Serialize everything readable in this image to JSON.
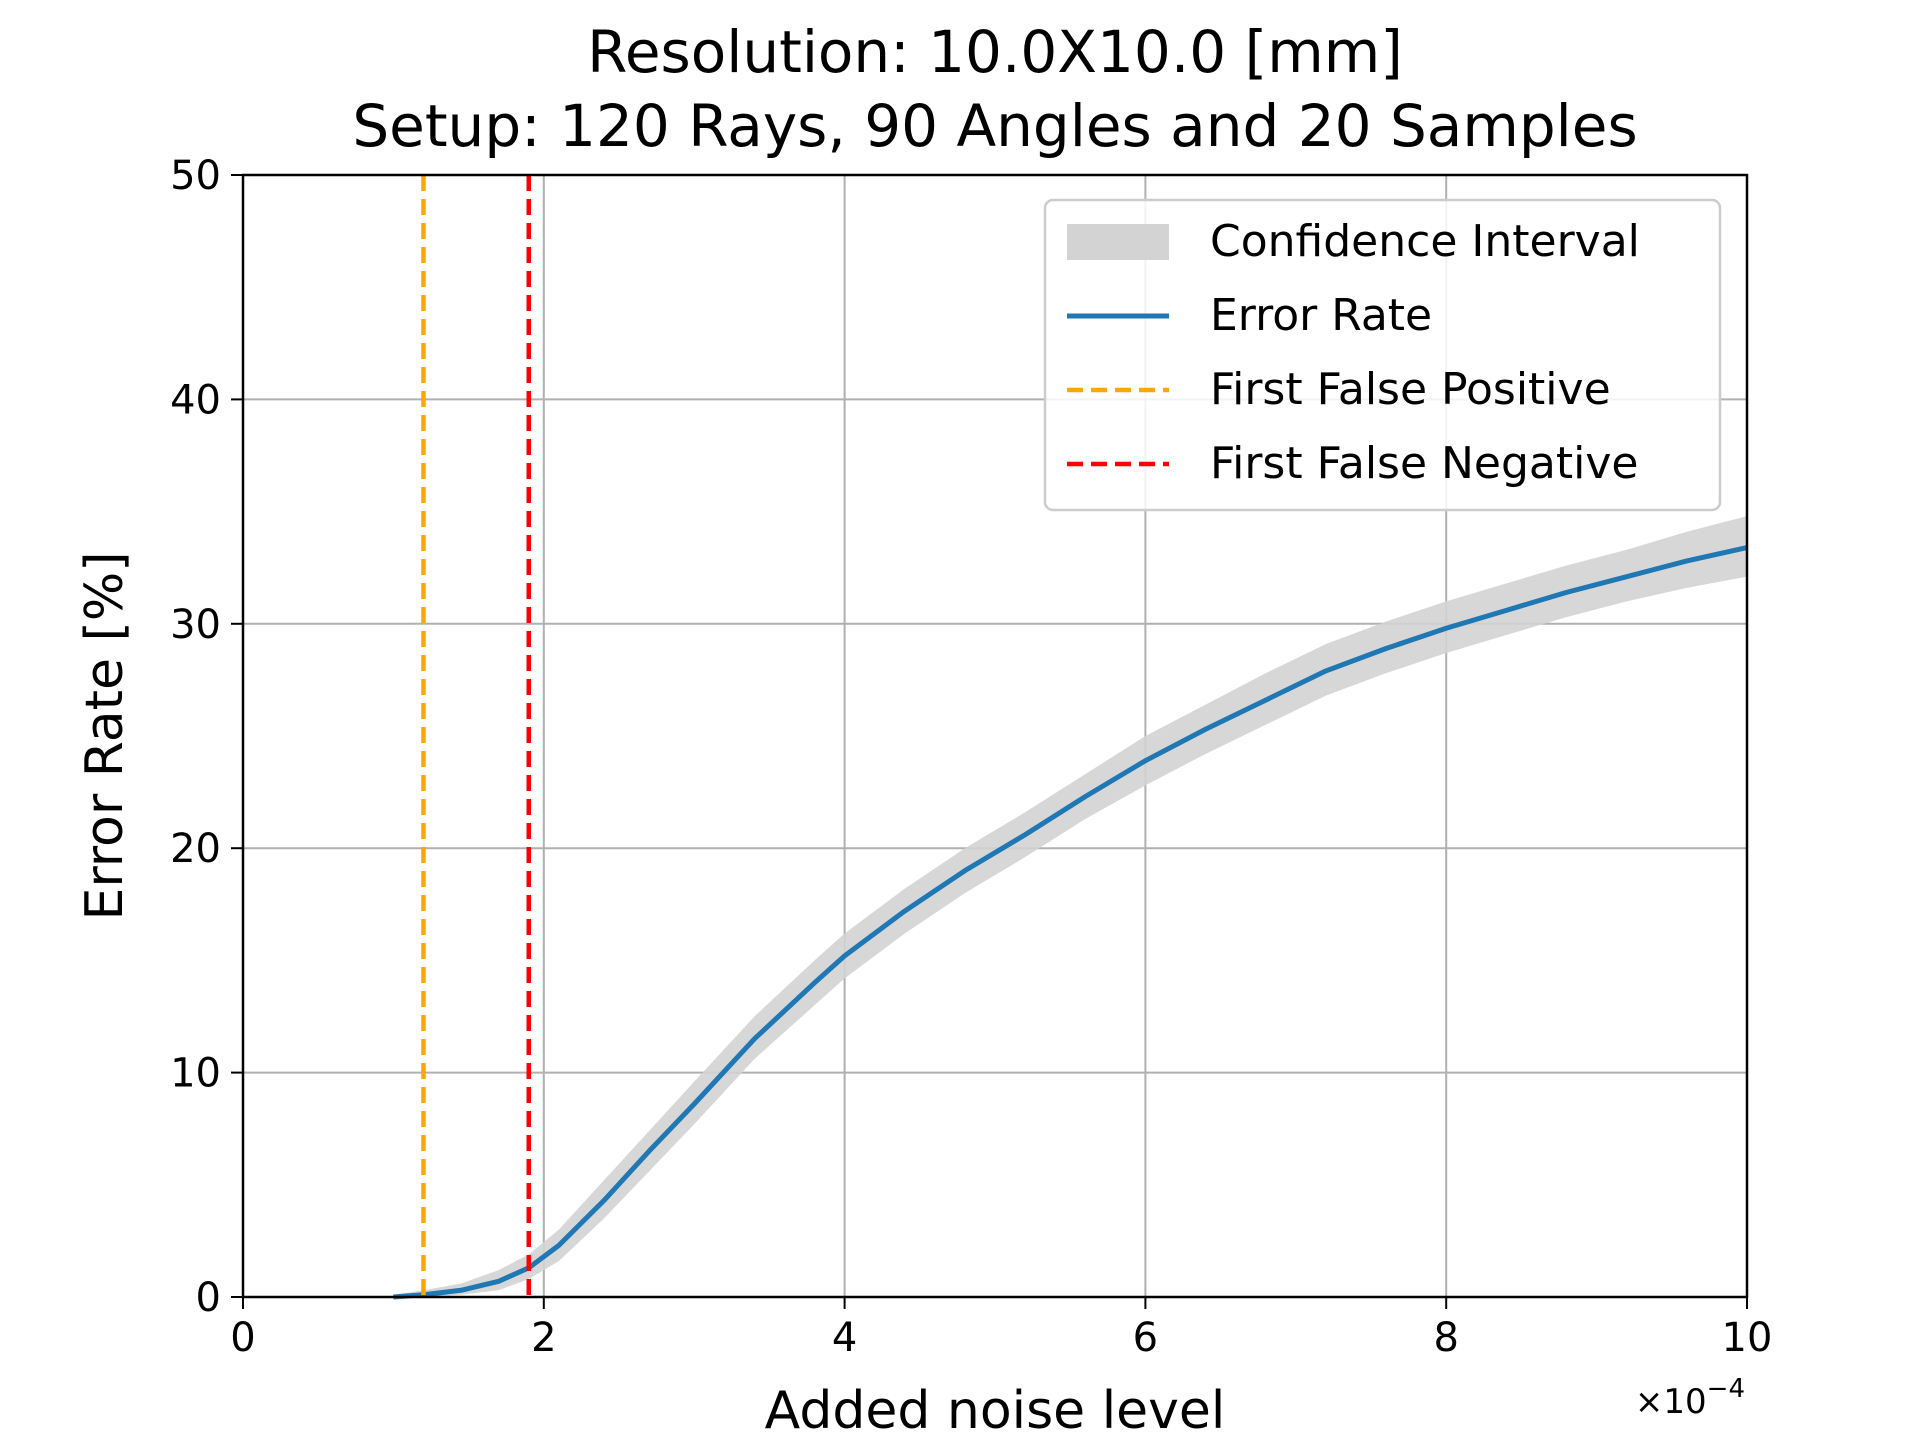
{
  "chart_data": {
    "type": "line",
    "title": [
      "Resolution: 10.0X10.0 [mm]",
      "Setup: 120 Rays, 90 Angles and 20 Samples"
    ],
    "xlabel": "Added noise level",
    "ylabel": "Error Rate [%]",
    "x_offset_text": "×10",
    "x_offset_exponent": "−4",
    "xlim": [
      0,
      10
    ],
    "ylim": [
      0,
      50
    ],
    "x_ticks": [
      "0",
      "2",
      "4",
      "6",
      "8",
      "10"
    ],
    "y_ticks": [
      "0",
      "10",
      "20",
      "30",
      "40",
      "50"
    ],
    "grid": true,
    "legend_position": "top-right",
    "series": [
      {
        "name": "Error Rate",
        "style": "line",
        "color": "#1f77b4",
        "x": [
          1.0,
          1.2,
          1.45,
          1.7,
          1.9,
          2.1,
          2.4,
          2.7,
          3.0,
          3.4,
          3.8,
          4.0,
          4.4,
          4.8,
          5.2,
          5.6,
          6.0,
          6.4,
          6.8,
          7.2,
          7.6,
          8.0,
          8.4,
          8.8,
          9.2,
          9.6,
          10.0
        ],
        "y": [
          0.0,
          0.1,
          0.3,
          0.7,
          1.3,
          2.3,
          4.3,
          6.5,
          8.6,
          11.5,
          14.0,
          15.2,
          17.2,
          19.0,
          20.6,
          22.3,
          23.9,
          25.3,
          26.6,
          27.9,
          28.9,
          29.8,
          30.6,
          31.4,
          32.1,
          32.8,
          33.4
        ]
      },
      {
        "name": "Confidence Interval",
        "style": "band",
        "color": "#d3d3d3",
        "x": [
          1.0,
          1.2,
          1.45,
          1.7,
          1.9,
          2.1,
          2.4,
          2.7,
          3.0,
          3.4,
          3.8,
          4.0,
          4.4,
          4.8,
          5.2,
          5.6,
          6.0,
          6.4,
          6.8,
          7.2,
          7.6,
          8.0,
          8.4,
          8.8,
          9.2,
          9.6,
          10.0
        ],
        "lower": [
          0.0,
          0.0,
          0.1,
          0.3,
          0.8,
          1.6,
          3.5,
          5.6,
          7.7,
          10.6,
          13.0,
          14.2,
          16.2,
          18.0,
          19.6,
          21.3,
          22.8,
          24.2,
          25.5,
          26.8,
          27.8,
          28.7,
          29.5,
          30.3,
          31.0,
          31.6,
          32.1
        ],
        "upper": [
          0.1,
          0.3,
          0.6,
          1.2,
          1.9,
          3.0,
          5.2,
          7.4,
          9.6,
          12.5,
          15.0,
          16.2,
          18.2,
          20.0,
          21.6,
          23.3,
          25.0,
          26.4,
          27.8,
          29.1,
          30.1,
          31.0,
          31.8,
          32.6,
          33.3,
          34.1,
          34.8
        ]
      },
      {
        "name": "First False Positive",
        "style": "vline",
        "color": "#ffa500",
        "x": 1.2
      },
      {
        "name": "First False Negative",
        "style": "vline",
        "color": "#ff0000",
        "x": 1.9
      }
    ],
    "legend_order": [
      "Confidence Interval",
      "Error Rate",
      "First False Positive",
      "First False Negative"
    ]
  }
}
